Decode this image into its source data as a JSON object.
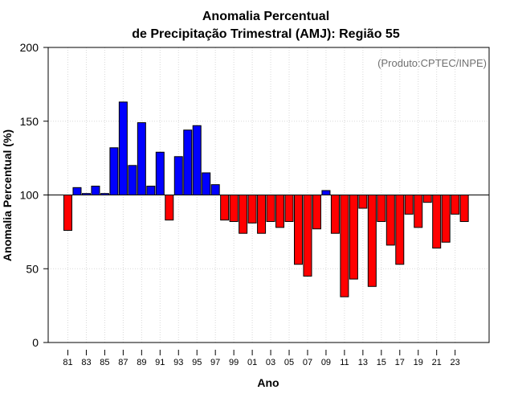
{
  "chart_data": {
    "type": "bar",
    "title_line1": "Anomalia Percentual",
    "title_line2": "de Precipitação Trimestral (AMJ): Região 55",
    "credit": "(Produto:CPTEC/INPE)",
    "xlabel": "Ano",
    "ylabel": "Anomalia Percentual (%)",
    "ylim": [
      0,
      200
    ],
    "yticks": [
      0,
      50,
      100,
      150,
      200
    ],
    "baseline": 100,
    "grid": true,
    "colors": {
      "above": "#0000ff",
      "below": "#ff0000",
      "edge": "#000000",
      "grid": "#d8d8d8"
    },
    "categories": [
      "81",
      "82",
      "83",
      "84",
      "85",
      "86",
      "87",
      "88",
      "89",
      "90",
      "91",
      "92",
      "93",
      "94",
      "95",
      "96",
      "97",
      "98",
      "99",
      "00",
      "01",
      "02",
      "03",
      "04",
      "05",
      "06",
      "07",
      "08",
      "09",
      "10",
      "11",
      "12",
      "13",
      "14",
      "15",
      "16",
      "17",
      "18",
      "19",
      "20",
      "21",
      "22",
      "23",
      "24"
    ],
    "tick_labels": [
      "81",
      "83",
      "85",
      "87",
      "89",
      "91",
      "93",
      "95",
      "97",
      "99",
      "01",
      "03",
      "05",
      "07",
      "09",
      "11",
      "13",
      "15",
      "17",
      "19",
      "21",
      "23"
    ],
    "values": [
      76,
      105,
      101,
      106,
      101,
      132,
      163,
      120,
      149,
      106,
      129,
      83,
      126,
      144,
      147,
      115,
      107,
      83,
      82,
      74,
      81,
      74,
      82,
      78,
      82,
      53,
      45,
      77,
      103,
      74,
      31,
      43,
      91,
      38,
      82,
      66,
      53,
      87,
      78,
      95,
      64,
      68,
      87,
      82
    ]
  }
}
